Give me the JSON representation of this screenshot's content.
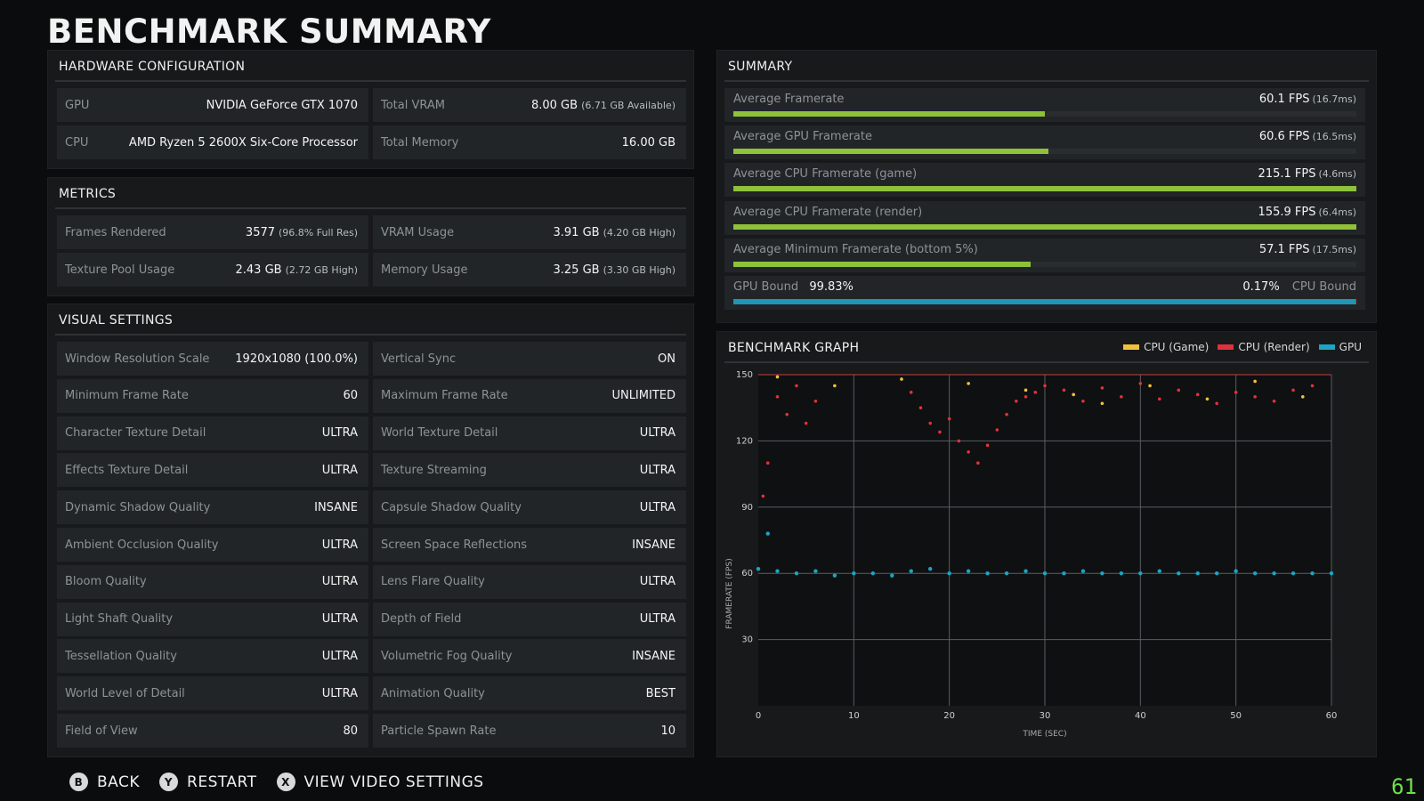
{
  "title": "BENCHMARK SUMMARY",
  "hardware": {
    "title": "HARDWARE CONFIGURATION",
    "gpu": {
      "label": "GPU",
      "value": "NVIDIA GeForce GTX 1070"
    },
    "cpu": {
      "label": "CPU",
      "value": "AMD Ryzen 5 2600X Six-Core Processor"
    },
    "vram": {
      "label": "Total VRAM",
      "value": "8.00 GB",
      "sub": "(6.71 GB Available)"
    },
    "memory": {
      "label": "Total Memory",
      "value": "16.00 GB"
    }
  },
  "metrics": {
    "title": "METRICS",
    "frames": {
      "label": "Frames Rendered",
      "value": "3577",
      "sub": "(96.8% Full Res)"
    },
    "vram_usage": {
      "label": "VRAM Usage",
      "value": "3.91 GB",
      "sub": "(4.20 GB High)"
    },
    "texture_pool": {
      "label": "Texture Pool Usage",
      "value": "2.43 GB",
      "sub": "(2.72 GB High)"
    },
    "memory_usage": {
      "label": "Memory Usage",
      "value": "3.25 GB",
      "sub": "(3.30 GB High)"
    }
  },
  "visual": {
    "title": "VISUAL SETTINGS",
    "rows": [
      [
        {
          "label": "Window Resolution Scale",
          "value": "1920x1080 (100.0%)"
        },
        {
          "label": "Vertical Sync",
          "value": "ON"
        }
      ],
      [
        {
          "label": "Minimum Frame Rate",
          "value": "60"
        },
        {
          "label": "Maximum Frame Rate",
          "value": "UNLIMITED"
        }
      ],
      [
        {
          "label": "Character Texture Detail",
          "value": "ULTRA"
        },
        {
          "label": "World Texture Detail",
          "value": "ULTRA"
        }
      ],
      [
        {
          "label": "Effects Texture Detail",
          "value": "ULTRA"
        },
        {
          "label": "Texture Streaming",
          "value": "ULTRA"
        }
      ],
      [
        {
          "label": "Dynamic Shadow Quality",
          "value": "INSANE"
        },
        {
          "label": "Capsule Shadow Quality",
          "value": "ULTRA"
        }
      ],
      [
        {
          "label": "Ambient Occlusion Quality",
          "value": "ULTRA"
        },
        {
          "label": "Screen Space Reflections",
          "value": "INSANE"
        }
      ],
      [
        {
          "label": "Bloom Quality",
          "value": "ULTRA"
        },
        {
          "label": "Lens Flare Quality",
          "value": "ULTRA"
        }
      ],
      [
        {
          "label": "Light Shaft Quality",
          "value": "ULTRA"
        },
        {
          "label": "Depth of Field",
          "value": "ULTRA"
        }
      ],
      [
        {
          "label": "Tessellation Quality",
          "value": "ULTRA"
        },
        {
          "label": "Volumetric Fog Quality",
          "value": "INSANE"
        }
      ],
      [
        {
          "label": "World Level of Detail",
          "value": "ULTRA"
        },
        {
          "label": "Animation Quality",
          "value": "BEST"
        }
      ],
      [
        {
          "label": "Field of View",
          "value": "80"
        },
        {
          "label": "Particle Spawn Rate",
          "value": "10"
        }
      ]
    ]
  },
  "summary": {
    "title": "SUMMARY",
    "bar_color": "#8fc23a",
    "rows": [
      {
        "label": "Average Framerate",
        "value": "60.1 FPS",
        "sub": "(16.7ms)",
        "fill": 0.5
      },
      {
        "label": "Average GPU Framerate",
        "value": "60.6 FPS",
        "sub": "(16.5ms)",
        "fill": 0.505
      },
      {
        "label": "Average CPU Framerate (game)",
        "value": "215.1 FPS",
        "sub": "(4.6ms)",
        "fill": 1.0
      },
      {
        "label": "Average CPU Framerate (render)",
        "value": "155.9 FPS",
        "sub": "(6.4ms)",
        "fill": 1.0
      },
      {
        "label": "Average Minimum Framerate (bottom 5%)",
        "value": "57.1 FPS",
        "sub": "(17.5ms)",
        "fill": 0.477
      }
    ],
    "bound": {
      "gpu_label": "GPU Bound",
      "gpu_value": "99.83%",
      "cpu_label": "CPU Bound",
      "cpu_value": "0.17%",
      "gpu_fraction": 0.9983,
      "gpu_color": "#1f96b3",
      "cpu_color": "#d0323a"
    }
  },
  "graph": {
    "title": "BENCHMARK GRAPH",
    "legend": [
      {
        "name": "CPU (Game)",
        "color": "#f0c23a"
      },
      {
        "name": "CPU (Render)",
        "color": "#e0323a"
      },
      {
        "name": "GPU",
        "color": "#1aa6c4"
      }
    ]
  },
  "chart_data": {
    "type": "scatter",
    "xlabel": "TIME (SEC)",
    "ylabel": "FRAMERATE (FPS)",
    "xlim": [
      0,
      60
    ],
    "ylim": [
      0,
      150
    ],
    "x_ticks": [
      0,
      10,
      20,
      30,
      40,
      50,
      60
    ],
    "y_ticks": [
      30,
      60,
      90,
      120,
      150
    ],
    "grid": true,
    "series": [
      {
        "name": "CPU (Game)",
        "color": "#f0c23a",
        "x": [
          2,
          8,
          15,
          22,
          28,
          33,
          36,
          41,
          47,
          52,
          57
        ],
        "y": [
          149,
          145,
          148,
          146,
          143,
          141,
          137,
          145,
          139,
          147,
          140
        ]
      },
      {
        "name": "CPU (Render)",
        "color": "#e0323a",
        "x": [
          0.5,
          1,
          2,
          3,
          4,
          5,
          6,
          16,
          17,
          18,
          19,
          20,
          21,
          22,
          23,
          24,
          25,
          26,
          27,
          28,
          29,
          30,
          32,
          34,
          36,
          38,
          40,
          42,
          44,
          46,
          48,
          50,
          52,
          54,
          56,
          58
        ],
        "y": [
          95,
          110,
          140,
          132,
          145,
          128,
          138,
          142,
          135,
          128,
          124,
          130,
          120,
          115,
          110,
          118,
          125,
          132,
          138,
          140,
          142,
          145,
          143,
          138,
          144,
          140,
          146,
          139,
          143,
          141,
          137,
          142,
          140,
          138,
          143,
          145
        ]
      },
      {
        "name": "GPU",
        "color": "#1aa6c4",
        "x": [
          0,
          1,
          2,
          4,
          6,
          8,
          10,
          12,
          14,
          16,
          18,
          20,
          22,
          24,
          26,
          28,
          30,
          32,
          34,
          36,
          38,
          40,
          42,
          44,
          46,
          48,
          50,
          52,
          54,
          56,
          58,
          60
        ],
        "y": [
          62,
          78,
          61,
          60,
          61,
          59,
          60,
          60,
          59,
          61,
          62,
          60,
          61,
          60,
          60,
          61,
          60,
          60,
          61,
          60,
          60,
          60,
          61,
          60,
          60,
          60,
          61,
          60,
          60,
          60,
          60,
          60
        ]
      }
    ]
  },
  "footer": {
    "back": {
      "key": "B",
      "label": "BACK"
    },
    "restart": {
      "key": "Y",
      "label": "RESTART"
    },
    "video": {
      "key": "X",
      "label": "VIEW VIDEO SETTINGS"
    }
  },
  "fps_counter": "61"
}
